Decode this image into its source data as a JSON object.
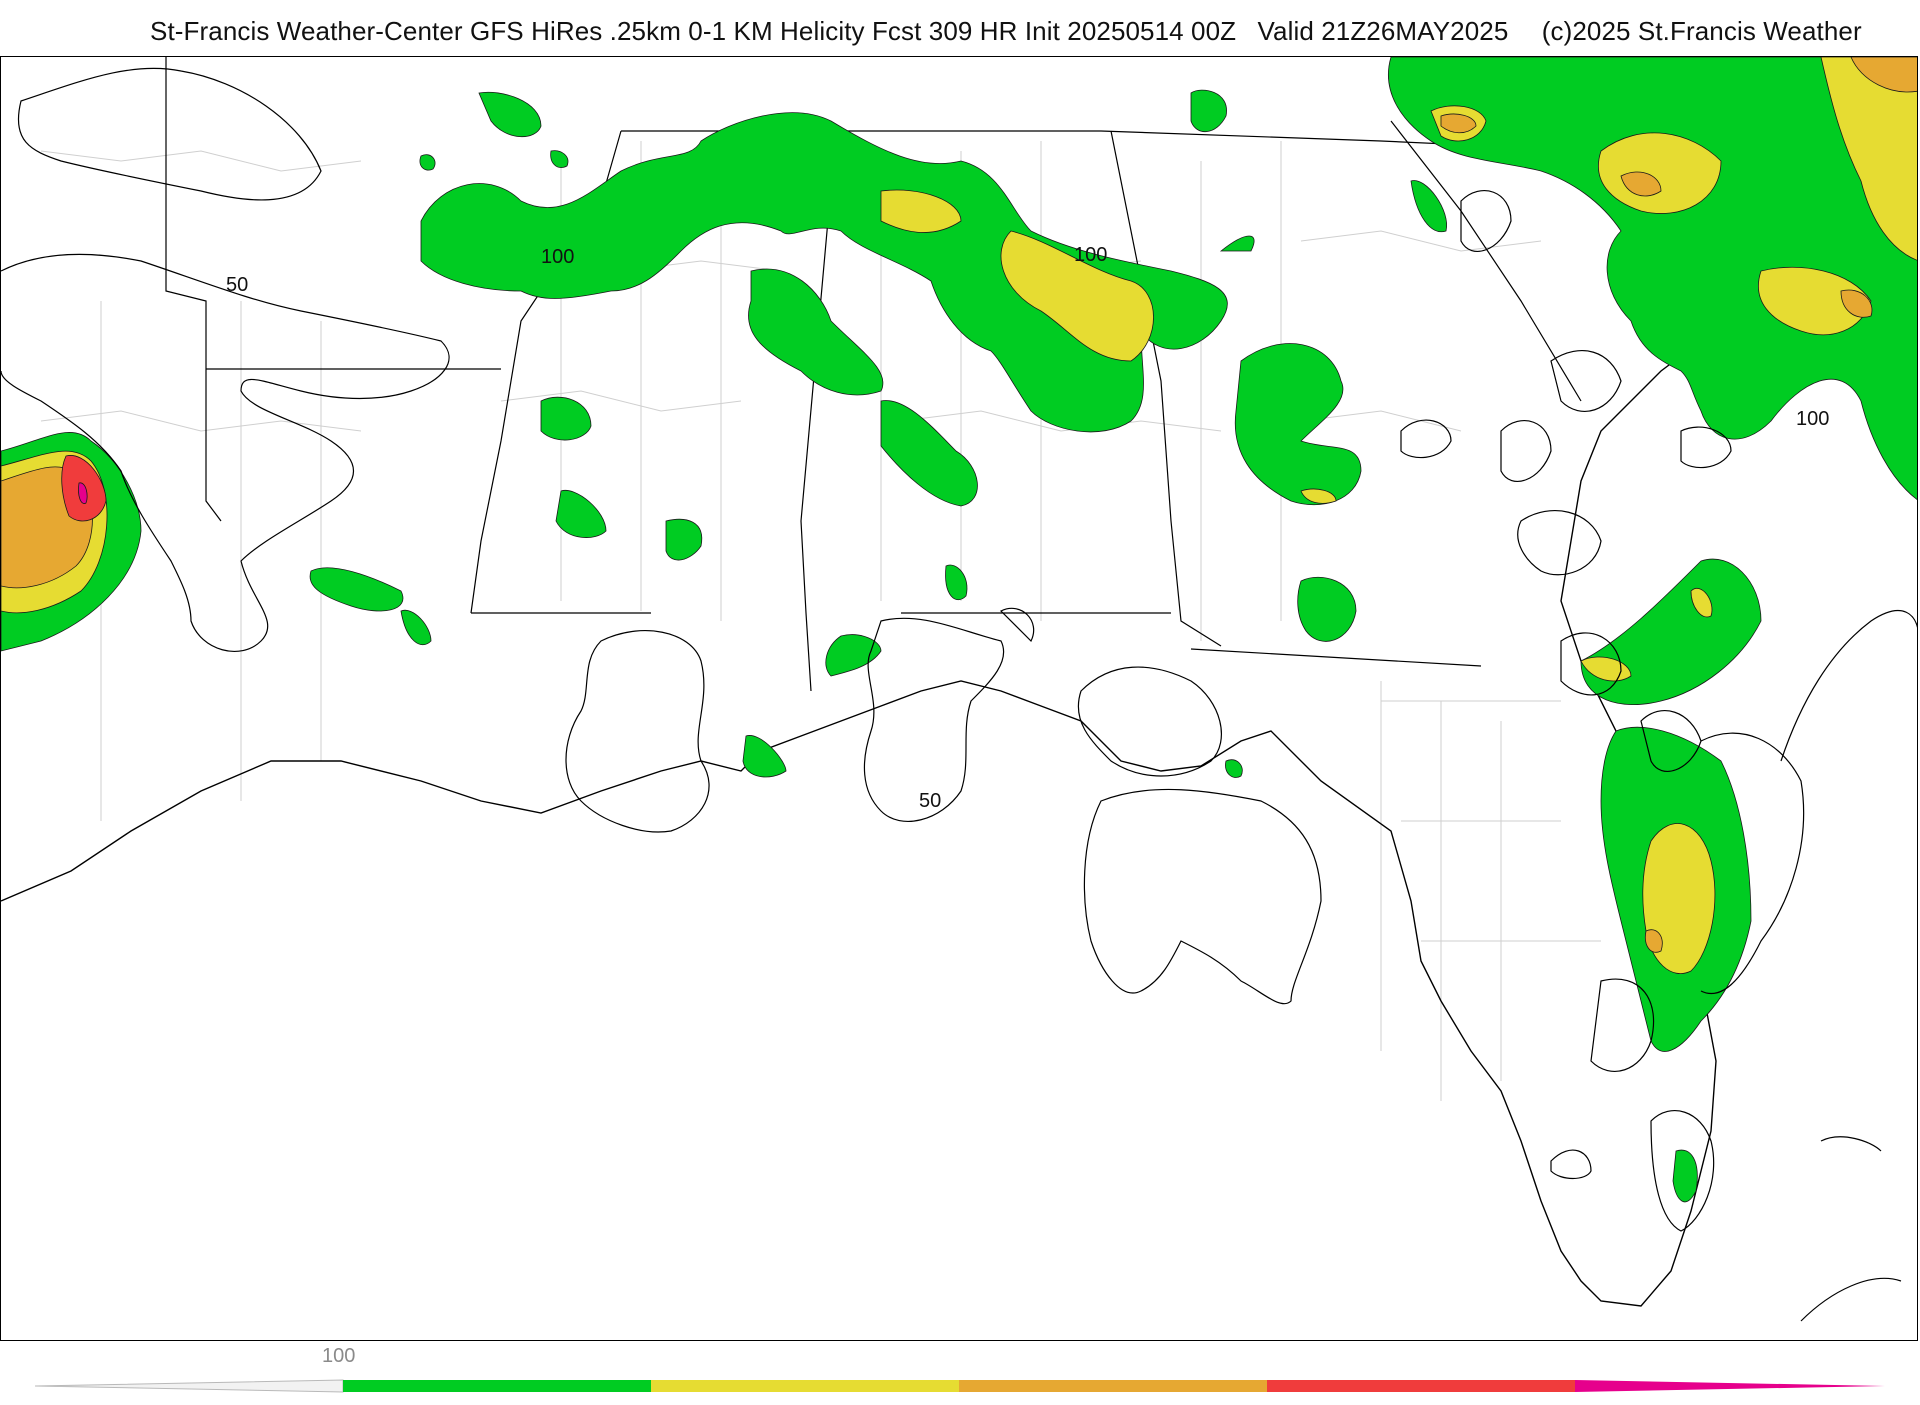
{
  "header": {
    "title": "St-Francis Weather-Center GFS HiRes .25km 0-1 KM Helicity Fcst 309 HR Init 20250514 00Z",
    "valid": "Valid 21Z26MAY2025",
    "copyright": "(c)2025 St.Francis Weather"
  },
  "map": {
    "contour_labels": [
      "50",
      "100",
      "100",
      "50",
      "100"
    ],
    "colors": {
      "green": "#00cc22",
      "yellow": "#e6dc32",
      "orange": "#e6a832",
      "red": "#f03c3c",
      "magenta": "#e6008c",
      "contour": "#000000",
      "county_lines": "#c8c8c8"
    }
  },
  "colorbar": {
    "tick_label": "100",
    "segments": [
      "green",
      "yellow",
      "orange",
      "red",
      "magenta"
    ]
  }
}
